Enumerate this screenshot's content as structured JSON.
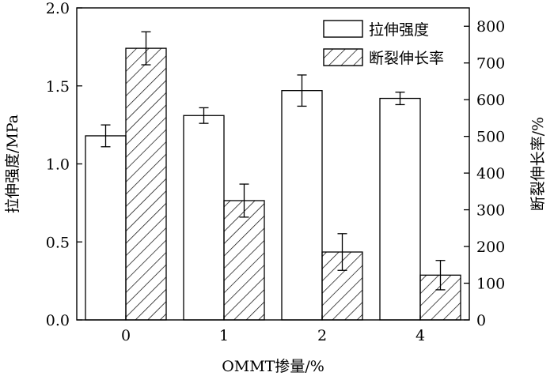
{
  "chart_data": {
    "type": "bar",
    "xlabel": "OMMT掺量/%",
    "categories": [
      "0",
      "1",
      "2",
      "4"
    ],
    "y_left": {
      "label": "拉伸强度/MPa",
      "range": [
        0,
        2.0
      ],
      "ticks": [
        "0.0",
        "0.5",
        "1.0",
        "1.5",
        "2.0"
      ]
    },
    "y_right": {
      "label": "断裂伸长率/%",
      "range": [
        0,
        850
      ],
      "ticks": [
        "0",
        "100",
        "200",
        "300",
        "400",
        "500",
        "600",
        "700",
        "800"
      ]
    },
    "series": [
      {
        "name": "拉伸强度",
        "axis": "left",
        "pattern": "open",
        "values": [
          1.18,
          1.31,
          1.47,
          1.42
        ],
        "errors": [
          0.07,
          0.05,
          0.1,
          0.04
        ]
      },
      {
        "name": "断裂伸长率",
        "axis": "right",
        "pattern": "hatched",
        "values": [
          740,
          325,
          185,
          122
        ],
        "errors": [
          45,
          45,
          50,
          40
        ]
      }
    ],
    "legend": "top-right",
    "grid": false,
    "colors": {
      "stroke": "#000000",
      "fill": "#ffffff"
    }
  }
}
